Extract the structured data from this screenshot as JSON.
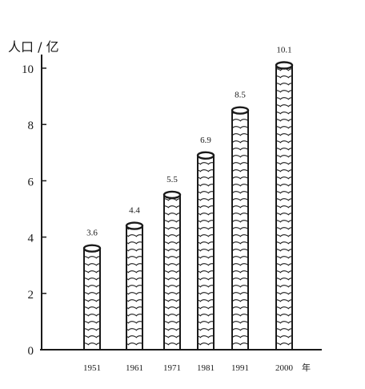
{
  "chart_data": {
    "type": "bar",
    "title": "",
    "ylabel": "人口 / 亿",
    "xlabel": "",
    "x_unit": "年",
    "categories": [
      "1951",
      "1961",
      "1971",
      "1981",
      "1991",
      "2000"
    ],
    "values": [
      3.6,
      4.4,
      5.5,
      6.9,
      8.5,
      10.1
    ],
    "value_labels": [
      "3.6",
      "4.4",
      "5.5",
      "6.9",
      "8.5",
      "10.1"
    ],
    "ylim": [
      0,
      10
    ],
    "yticks": [
      "0",
      "2",
      "4",
      "6",
      "8",
      "10"
    ],
    "grid": false,
    "legend": false,
    "bar_style": "cylinder-hatched",
    "colors": {
      "ink": "#1a1a1a",
      "background": "#ffffff"
    }
  }
}
